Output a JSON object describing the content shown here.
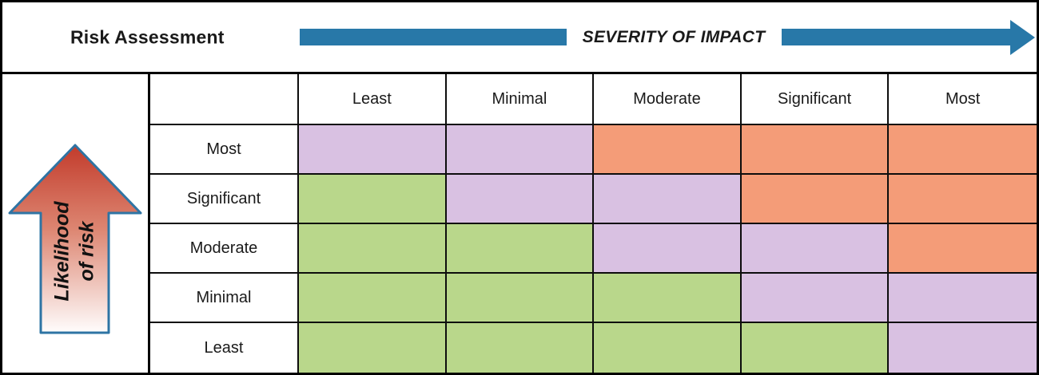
{
  "banner": {
    "title": "Risk Assessment",
    "severity_label": "SEVERITY OF IMPACT"
  },
  "likelihood_axis": {
    "line1": "Likelihood",
    "line2": "of risk"
  },
  "matrix": {
    "column_headers": [
      "Least",
      "Minimal",
      "Moderate",
      "Significant",
      "Most"
    ],
    "row_headers": [
      "Most",
      "Significant",
      "Moderate",
      "Minimal",
      "Least"
    ],
    "cells": [
      [
        "purple",
        "purple",
        "orange",
        "orange",
        "orange"
      ],
      [
        "green",
        "purple",
        "purple",
        "orange",
        "orange"
      ],
      [
        "green",
        "green",
        "purple",
        "purple",
        "orange"
      ],
      [
        "green",
        "green",
        "green",
        "purple",
        "purple"
      ],
      [
        "green",
        "green",
        "green",
        "green",
        "purple"
      ]
    ]
  },
  "colors": {
    "green": "#b9d78b",
    "purple": "#d9c1e2",
    "orange": "#f49c78",
    "arrow_blue": "#2878a8",
    "arrow_border_blue": "#2e74a4",
    "arrow_gradient_top": "#c23b2b",
    "arrow_gradient_mid": "#dd8672",
    "arrow_gradient_bottom": "#fffdfd"
  }
}
